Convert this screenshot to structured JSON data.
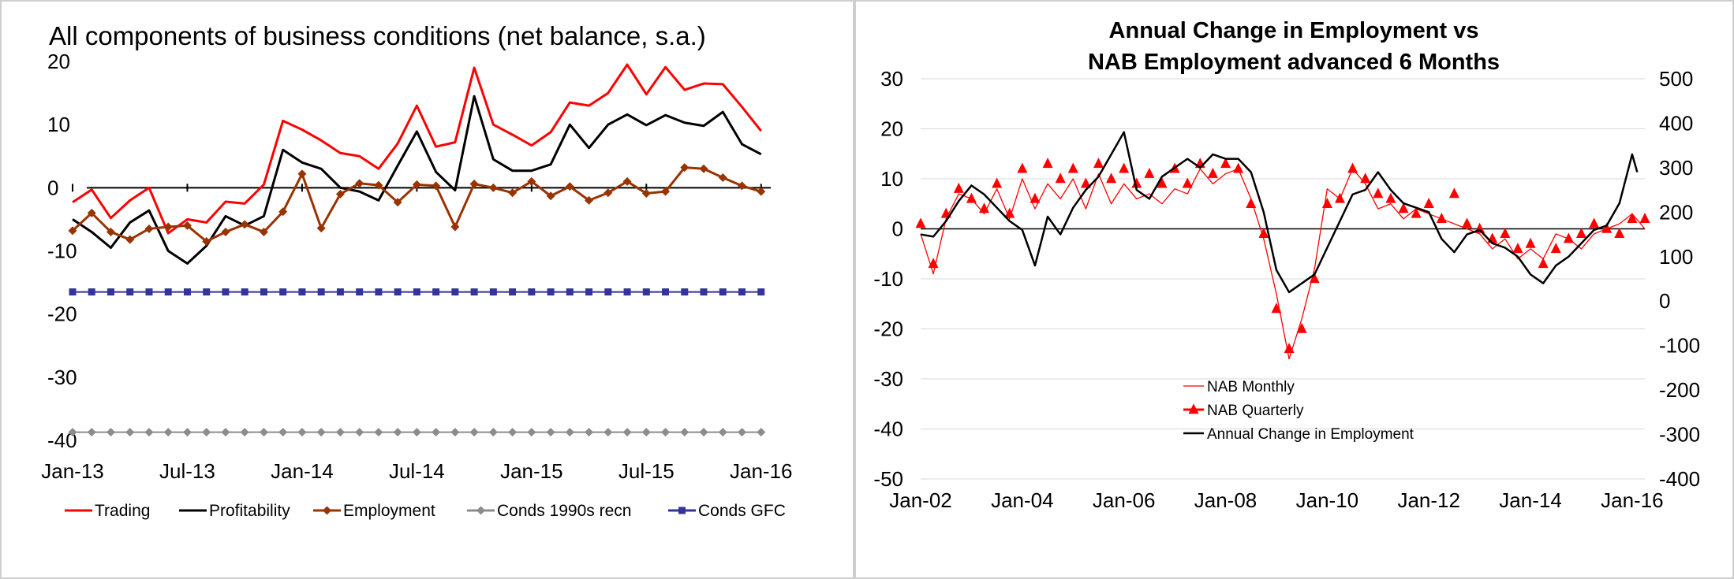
{
  "chart_data": [
    {
      "type": "line",
      "title": "All components of business conditions (net balance, s.a.)",
      "ylim": [
        -40,
        20
      ],
      "yticks": [
        20,
        10,
        0,
        -10,
        -20,
        -30,
        -40
      ],
      "xticklabels": [
        "Jan-13",
        "Jul-13",
        "Jan-14",
        "Jul-14",
        "Jan-15",
        "Jul-15",
        "Jan-16"
      ],
      "xtickIndex": [
        0,
        6,
        12,
        18,
        24,
        30,
        36
      ],
      "xlim": [
        0,
        37
      ],
      "legend_position": "bottom",
      "series": [
        {
          "name": "Trading",
          "color": "#ff0000",
          "marker": "none",
          "width": 3,
          "values": [
            -2.3,
            -0.3,
            -4.8,
            -2.0,
            0,
            -7.2,
            -5.0,
            -5.5,
            -2.2,
            -2.5,
            0.5,
            10.6,
            9.2,
            7.5,
            5.5,
            5.0,
            3.0,
            7.0,
            13.0,
            6.5,
            7.2,
            19.0,
            10.0,
            8.4,
            6.7,
            8.8,
            13.5,
            13.0,
            15.0,
            19.5,
            14.8,
            19.1,
            15.5,
            16.5,
            16.4,
            12.8,
            9.0
          ]
        },
        {
          "name": "Profitability",
          "color": "#000000",
          "marker": "none",
          "width": 3,
          "values": [
            -5.0,
            -7.0,
            -9.5,
            -5.5,
            -3.6,
            -10.0,
            -12.0,
            -9.2,
            -4.5,
            -6.0,
            -4.5,
            6.0,
            4.0,
            3.0,
            0,
            -0.6,
            -2.0,
            3.5,
            8.9,
            2.5,
            -0.4,
            14.5,
            4.5,
            2.7,
            2.7,
            3.7,
            10.0,
            6.3,
            10.0,
            11.6,
            9.9,
            11.5,
            10.3,
            9.8,
            12.0,
            6.9,
            5.3
          ]
        },
        {
          "name": "Employment",
          "color": "#993300",
          "marker": "diamond",
          "width": 3,
          "values": [
            -6.8,
            -4.0,
            -7.0,
            -8.2,
            -6.5,
            -6.2,
            -6.0,
            -8.5,
            -7.0,
            -5.8,
            -7.0,
            -3.8,
            2.2,
            -6.4,
            -1.0,
            0.7,
            0.4,
            -2.3,
            0.5,
            0.3,
            -6.2,
            0.6,
            0,
            -0.8,
            1.0,
            -1.3,
            0.2,
            -2.0,
            -0.8,
            1.0,
            -0.9,
            -0.6,
            3.2,
            3.0,
            1.6,
            0.3,
            -0.6
          ]
        },
        {
          "name": "Conds 1990s recn",
          "color": "#8c8c8c",
          "marker": "diamond",
          "width": 2,
          "values": [
            -38.7,
            -38.7,
            -38.7,
            -38.7,
            -38.7,
            -38.7,
            -38.7,
            -38.7,
            -38.7,
            -38.7,
            -38.7,
            -38.7,
            -38.7,
            -38.7,
            -38.7,
            -38.7,
            -38.7,
            -38.7,
            -38.7,
            -38.7,
            -38.7,
            -38.7,
            -38.7,
            -38.7,
            -38.7,
            -38.7,
            -38.7,
            -38.7,
            -38.7,
            -38.7,
            -38.7,
            -38.7,
            -38.7,
            -38.7,
            -38.7,
            -38.7,
            -38.7
          ]
        },
        {
          "name": "Conds GFC",
          "color": "#333399",
          "marker": "square",
          "width": 2,
          "values": [
            -16.5,
            -16.5,
            -16.5,
            -16.5,
            -16.5,
            -16.5,
            -16.5,
            -16.5,
            -16.5,
            -16.5,
            -16.5,
            -16.5,
            -16.5,
            -16.5,
            -16.5,
            -16.5,
            -16.5,
            -16.5,
            -16.5,
            -16.5,
            -16.5,
            -16.5,
            -16.5,
            -16.5,
            -16.5,
            -16.5,
            -16.5,
            -16.5,
            -16.5,
            -16.5,
            -16.5,
            -16.5,
            -16.5,
            -16.5,
            -16.5,
            -16.5,
            -16.5
          ]
        }
      ]
    },
    {
      "type": "line",
      "title": [
        "Annual Change in Employment vs",
        "NAB Employment advanced 6 Months"
      ],
      "ylim": [
        -50,
        30
      ],
      "yticks": [
        30,
        20,
        10,
        0,
        -10,
        -20,
        -30,
        -40,
        -50
      ],
      "y2lim": [
        -400,
        500
      ],
      "y2ticks": [
        500,
        400,
        300,
        200,
        100,
        0,
        -100,
        -200,
        -300,
        -400
      ],
      "xlim": [
        2002.0,
        2016.25
      ],
      "xticklabels": [
        "Jan-02",
        "Jan-04",
        "Jan-06",
        "Jan-08",
        "Jan-10",
        "Jan-12",
        "Jan-14",
        "Jan-16"
      ],
      "xtickYears": [
        2002,
        2004,
        2006,
        2008,
        2010,
        2012,
        2014,
        2016
      ],
      "legend_position": "lower-left",
      "series": [
        {
          "name": "NAB Monthly",
          "axis": "left",
          "color": "#ff0000",
          "width": 1.3,
          "x": [
            2002.0,
            2002.25,
            2002.5,
            2002.75,
            2003.0,
            2003.25,
            2003.5,
            2003.75,
            2004.0,
            2004.25,
            2004.5,
            2004.75,
            2005.0,
            2005.25,
            2005.5,
            2005.75,
            2006.0,
            2006.25,
            2006.5,
            2006.75,
            2007.0,
            2007.25,
            2007.5,
            2007.75,
            2008.0,
            2008.25,
            2008.5,
            2008.75,
            2009.0,
            2009.25,
            2009.5,
            2009.75,
            2010.0,
            2010.25,
            2010.5,
            2010.75,
            2011.0,
            2011.25,
            2011.5,
            2011.75,
            2012.0,
            2012.25,
            2012.5,
            2012.75,
            2013.0,
            2013.25,
            2013.5,
            2013.75,
            2014.0,
            2014.25,
            2014.5,
            2014.75,
            2015.0,
            2015.25,
            2015.5,
            2015.75,
            2016.0,
            2016.25
          ],
          "values": [
            -1,
            -9,
            2,
            7,
            6,
            3,
            8,
            2,
            10,
            4,
            9,
            6,
            10,
            4,
            11,
            5,
            9,
            6,
            7,
            5,
            8,
            7,
            12,
            9,
            11,
            12,
            6,
            -2,
            -13,
            -26,
            -18,
            -8,
            8,
            6,
            12,
            9,
            4,
            5,
            2,
            4,
            3,
            2,
            1,
            0,
            -1,
            -4,
            -2,
            -6,
            -4,
            -6,
            -1,
            -2,
            -4,
            -1,
            0,
            1,
            3,
            0
          ]
        },
        {
          "name": "NAB Quarterly",
          "axis": "left",
          "color": "#ff0000",
          "marker": "triangle",
          "width": 3,
          "x": [
            2002.0,
            2002.25,
            2002.5,
            2002.75,
            2003.0,
            2003.25,
            2003.5,
            2003.75,
            2004.0,
            2004.25,
            2004.5,
            2004.75,
            2005.0,
            2005.25,
            2005.5,
            2005.75,
            2006.0,
            2006.25,
            2006.5,
            2006.75,
            2007.0,
            2007.25,
            2007.5,
            2007.75,
            2008.0,
            2008.25,
            2008.5,
            2008.75,
            2009.0,
            2009.25,
            2009.5,
            2009.75,
            2010.0,
            2010.25,
            2010.5,
            2010.75,
            2011.0,
            2011.25,
            2011.5,
            2011.75,
            2012.0,
            2012.25,
            2012.5,
            2012.75,
            2013.0,
            2013.25,
            2013.5,
            2013.75,
            2014.0,
            2014.25,
            2014.5,
            2014.75,
            2015.0,
            2015.25,
            2015.5,
            2015.75,
            2016.0,
            2016.25
          ],
          "values": [
            1,
            -7,
            3,
            8,
            6,
            4,
            9,
            3,
            12,
            6,
            13,
            10,
            12,
            9,
            13,
            10,
            12,
            9,
            11,
            9,
            12,
            9,
            13,
            11,
            13,
            12,
            5,
            -1,
            -16,
            -24,
            -20,
            -10,
            5,
            6,
            12,
            10,
            7,
            6,
            4,
            3,
            5,
            2,
            7,
            1,
            0,
            -2,
            -1,
            -4,
            -3,
            -7,
            -4,
            -2,
            -1,
            1,
            0,
            -1,
            2,
            2
          ]
        },
        {
          "name": "Annual Change in Employment",
          "axis": "right",
          "color": "#000000",
          "width": 2.5,
          "x": [
            2002.0,
            2002.25,
            2002.5,
            2002.75,
            2003.0,
            2003.25,
            2003.5,
            2003.75,
            2004.0,
            2004.25,
            2004.5,
            2004.75,
            2005.0,
            2005.25,
            2005.5,
            2005.75,
            2006.0,
            2006.25,
            2006.5,
            2006.75,
            2007.0,
            2007.25,
            2007.5,
            2007.75,
            2008.0,
            2008.25,
            2008.5,
            2008.75,
            2009.0,
            2009.25,
            2009.5,
            2009.75,
            2010.0,
            2010.25,
            2010.5,
            2010.75,
            2011.0,
            2011.25,
            2011.5,
            2011.75,
            2012.0,
            2012.25,
            2012.5,
            2012.75,
            2013.0,
            2013.25,
            2013.5,
            2013.75,
            2014.0,
            2014.25,
            2014.5,
            2014.75,
            2015.0,
            2015.25,
            2015.5,
            2015.75,
            2016.0,
            2016.1
          ],
          "values": [
            150,
            145,
            180,
            225,
            260,
            240,
            210,
            180,
            160,
            80,
            190,
            150,
            210,
            250,
            280,
            330,
            380,
            250,
            230,
            280,
            300,
            320,
            300,
            330,
            320,
            320,
            290,
            200,
            70,
            20,
            40,
            60,
            120,
            180,
            240,
            250,
            290,
            250,
            220,
            210,
            200,
            140,
            110,
            150,
            160,
            130,
            120,
            100,
            60,
            40,
            80,
            100,
            130,
            160,
            170,
            220,
            330,
            290
          ]
        }
      ]
    }
  ],
  "legend_left": [
    "Trading",
    "Profitability",
    "Employment",
    "Conds 1990s recn",
    "Conds GFC"
  ],
  "legend_right": [
    "NAB Monthly",
    "NAB Quarterly",
    "Annual Change in Employment"
  ]
}
